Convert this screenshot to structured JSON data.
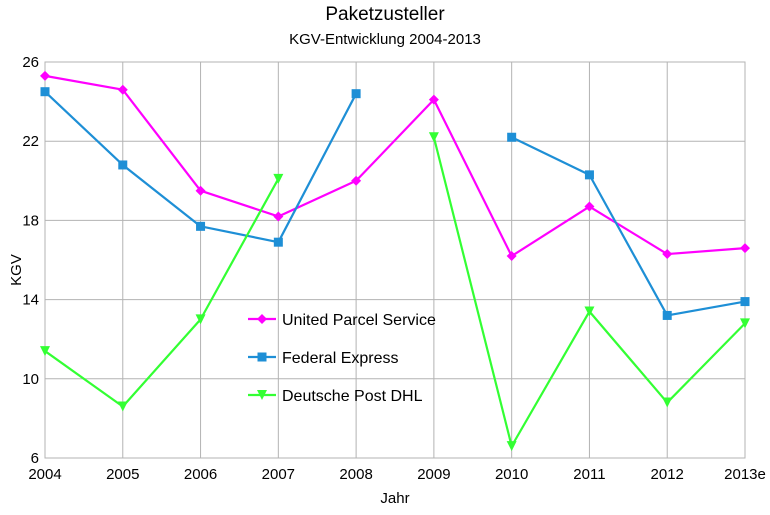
{
  "chart_data": {
    "type": "line",
    "title": "Paketzusteller",
    "subtitle": "KGV-Entwicklung 2004-2013",
    "xlabel": "Jahr",
    "ylabel": "KGV",
    "categories": [
      "2004",
      "2005",
      "2006",
      "2007",
      "2008",
      "2009",
      "2010",
      "2011",
      "2012",
      "2013e"
    ],
    "ylim": [
      6,
      26
    ],
    "yticks": [
      6,
      10,
      14,
      18,
      22,
      26
    ],
    "grid": true,
    "legend_position": "center-left",
    "series": [
      {
        "name": "United Parcel Service",
        "color": "#ff00ff",
        "marker": "diamond",
        "values": [
          25.3,
          24.6,
          19.5,
          18.2,
          20.0,
          24.1,
          16.2,
          18.7,
          16.3,
          16.6
        ]
      },
      {
        "name": "Federal Express",
        "color": "#1e8fd6",
        "marker": "square",
        "values": [
          24.5,
          20.8,
          17.7,
          16.9,
          24.4,
          null,
          22.2,
          20.3,
          13.2,
          13.9
        ]
      },
      {
        "name": "Deutsche Post DHL",
        "color": "#33ff33",
        "marker": "triangle-down",
        "values": [
          11.4,
          8.6,
          13.0,
          20.1,
          null,
          22.2,
          6.6,
          13.4,
          8.8,
          12.8
        ]
      }
    ]
  }
}
